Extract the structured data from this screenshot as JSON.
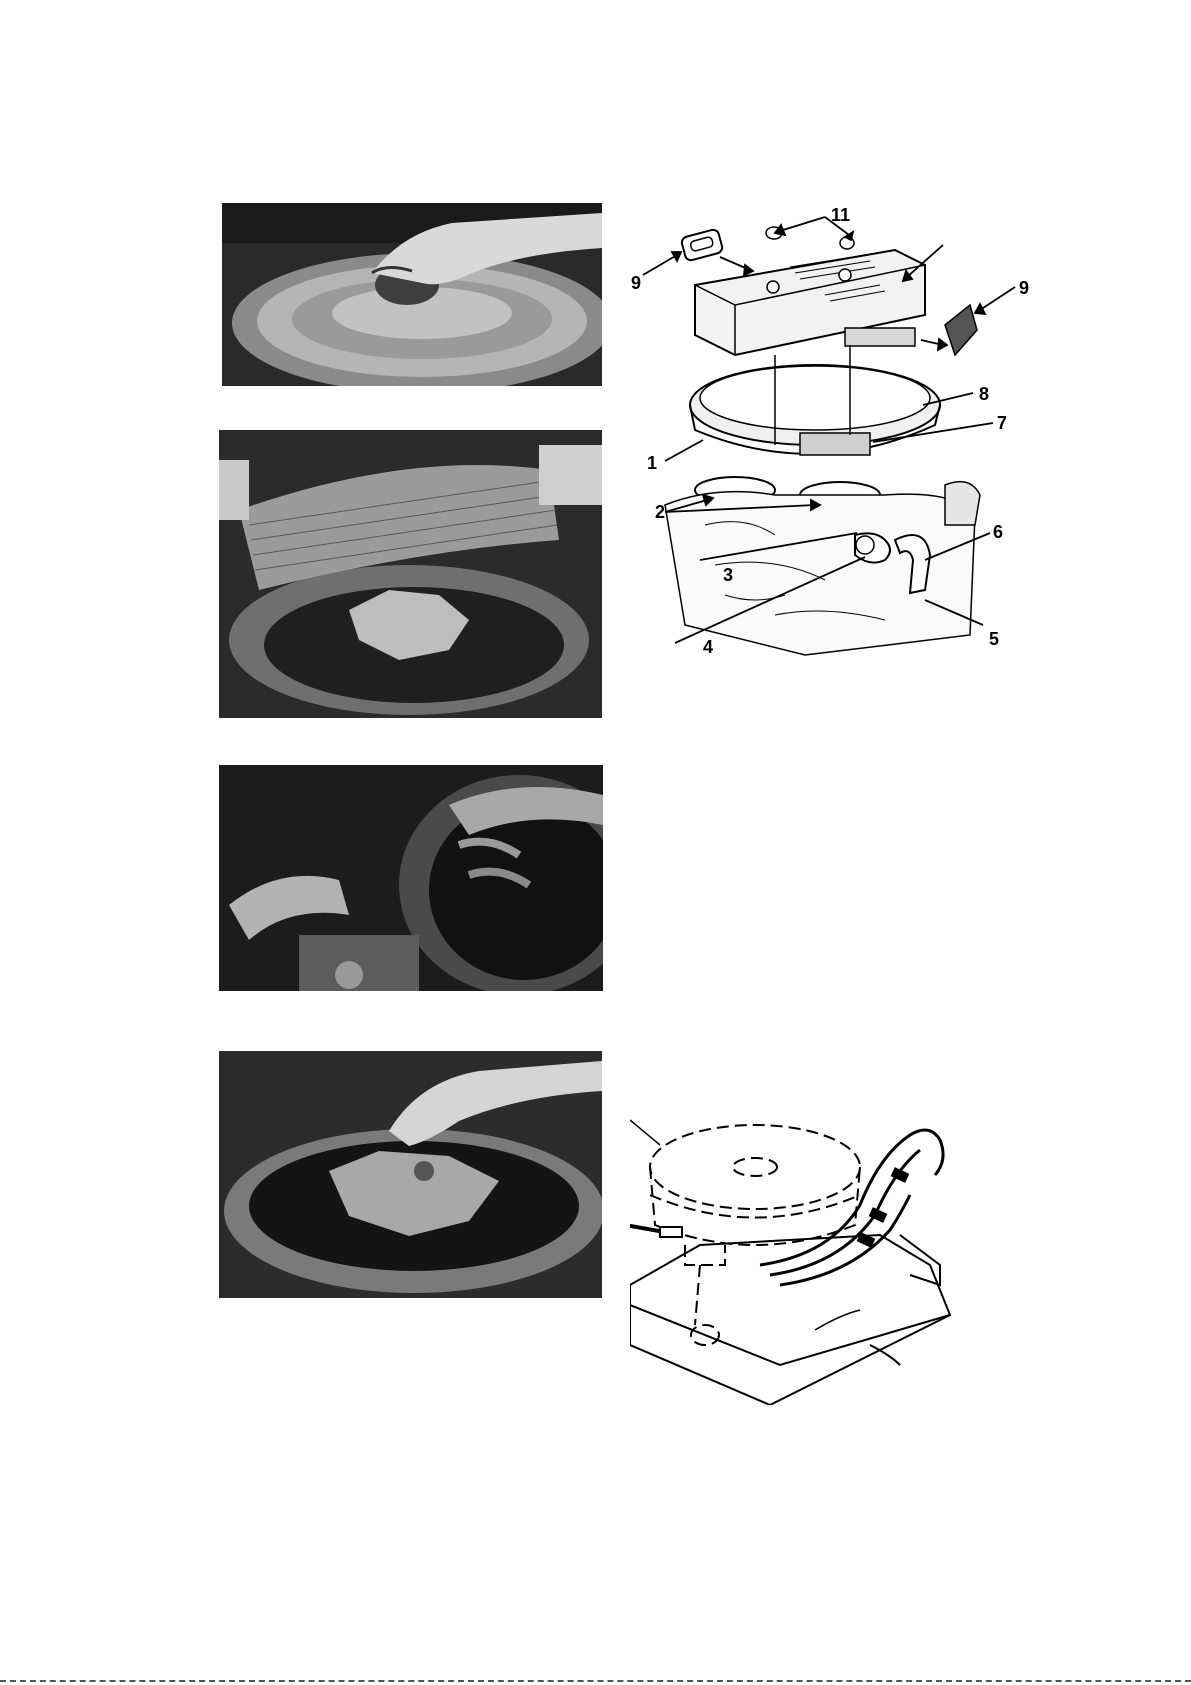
{
  "diagram_top": {
    "callouts": [
      "11",
      "9",
      "9",
      "8",
      "7",
      "1",
      "2",
      "6",
      "3",
      "5",
      "4"
    ]
  },
  "photos": [
    {
      "name": "photo-remove-wingnut"
    },
    {
      "name": "photo-lift-air-filter-element"
    },
    {
      "name": "photo-lift-housing"
    },
    {
      "name": "photo-install-wingnut"
    }
  ],
  "colors": {
    "ink": "#000000",
    "photo_dark": "#1e1e1e",
    "photo_mid": "#6b6b6b",
    "photo_light": "#cfcfcf"
  }
}
